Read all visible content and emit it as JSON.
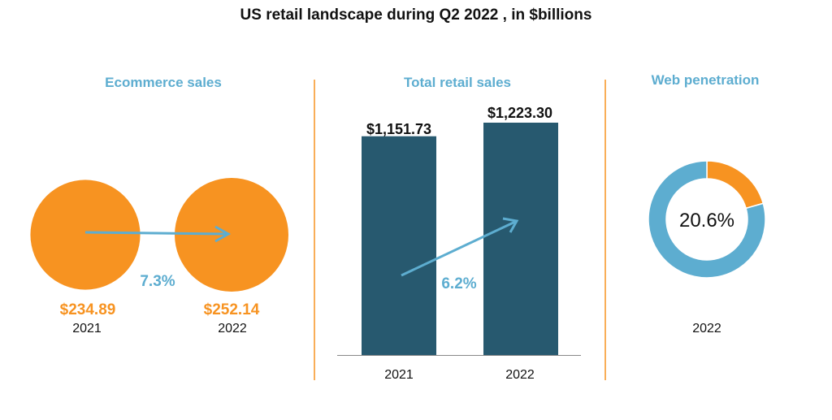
{
  "title": "US retail landscape during Q2 2022 , in $billions",
  "colors": {
    "orange": "#F79321",
    "blue": "#5DADD0",
    "navy": "#27596F",
    "text": "#111111"
  },
  "chart_data": [
    {
      "type": "bubble",
      "title": "Ecommerce sales",
      "categories": [
        "2021",
        "2022"
      ],
      "values": [
        234.89,
        252.14
      ],
      "value_labels": [
        "$234.89",
        "$252.14"
      ],
      "growth_label": "7.3%"
    },
    {
      "type": "bar",
      "title": "Total retail sales",
      "categories": [
        "2021",
        "2022"
      ],
      "values": [
        1151.73,
        1223.3
      ],
      "value_labels": [
        "$1,151.73",
        "$1,223.30"
      ],
      "growth_label": "6.2%",
      "ylim": [
        0,
        1223.3
      ]
    },
    {
      "type": "pie",
      "subtype": "donut",
      "title": "Web penetration",
      "values": [
        20.6,
        79.4
      ],
      "center_label": "20.6%",
      "category": "2022"
    }
  ]
}
